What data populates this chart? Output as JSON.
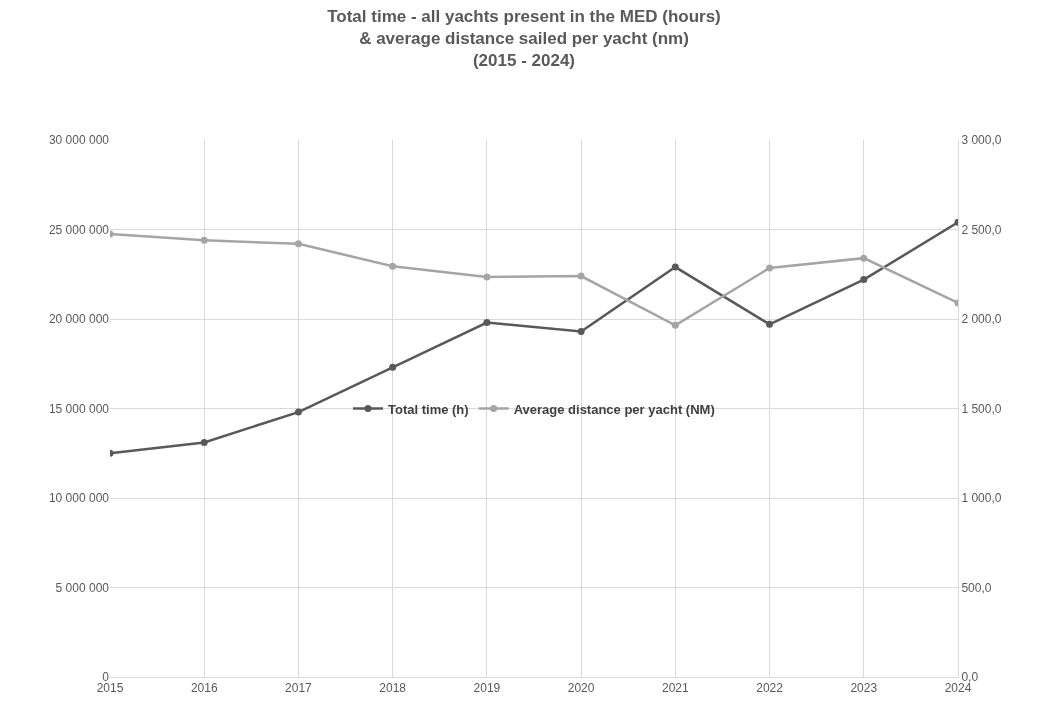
{
  "chart_data": {
    "type": "line",
    "title": "Total time - all yachts present in the MED (hours)\n& average distance sailed per yacht (nm)\n(2015 - 2024)",
    "x": [
      2015,
      2016,
      2017,
      2018,
      2019,
      2020,
      2021,
      2022,
      2023,
      2024
    ],
    "series": [
      {
        "name": "Total time (h)",
        "color": "#595959",
        "values": [
          12500000,
          13100000,
          14800000,
          17300000,
          19800000,
          19300000,
          22900000,
          19700000,
          22200000,
          25400000
        ]
      },
      {
        "name": "Average distance per yacht (NM)",
        "color": "#a5a5a5",
        "axis": "y2",
        "values": [
          2475,
          2440,
          2420,
          2295,
          2235,
          2240,
          1965,
          2285,
          2340,
          2090
        ]
      }
    ],
    "xlim": [
      2015,
      2024
    ],
    "xticks": [
      2015,
      2016,
      2017,
      2018,
      2019,
      2020,
      2021,
      2022,
      2023,
      2024
    ],
    "ylim": [
      0,
      30000000
    ],
    "yticks": [
      {
        "value": 0,
        "label": "0"
      },
      {
        "value": 5000000,
        "label": "5 000 000"
      },
      {
        "value": 10000000,
        "label": "10 000 000"
      },
      {
        "value": 15000000,
        "label": "15 000 000"
      },
      {
        "value": 20000000,
        "label": "20 000 000"
      },
      {
        "value": 25000000,
        "label": "25 000 000"
      },
      {
        "value": 30000000,
        "label": "30 000 000"
      }
    ],
    "y2lim": [
      0,
      3000
    ],
    "y2ticks": [
      {
        "value": 0,
        "label": "0,0"
      },
      {
        "value": 500,
        "label": "500,0"
      },
      {
        "value": 1000,
        "label": "1 000,0"
      },
      {
        "value": 1500,
        "label": "1 500,0"
      },
      {
        "value": 2000,
        "label": "2 000,0"
      },
      {
        "value": 2500,
        "label": "2 500,0"
      },
      {
        "value": 3000,
        "label": "3 000,0"
      }
    ],
    "grid": true,
    "legend": "center",
    "marker": "circle",
    "line_style": "solid"
  }
}
